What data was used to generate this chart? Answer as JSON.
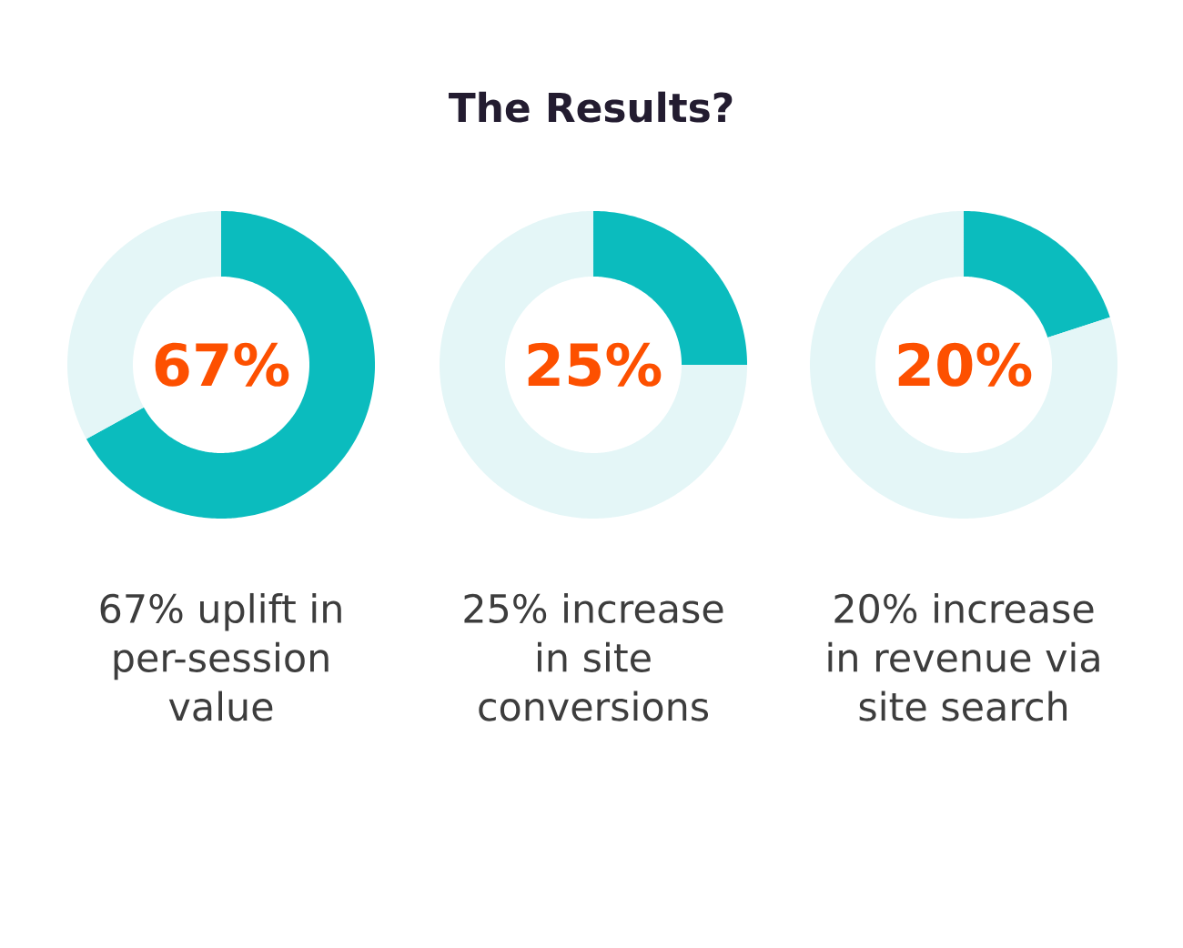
{
  "chart_data": [
    {
      "type": "donut",
      "categories": [
        null,
        null
      ],
      "values": [
        67,
        33
      ],
      "colors": [
        "#0bbcbe",
        "#e4f6f7"
      ],
      "annotations": [
        "67%"
      ],
      "xlabel": "67% uplift in per-session value"
    },
    {
      "type": "donut",
      "title": "The Results?",
      "categories": [
        null,
        null
      ],
      "values": [
        25,
        75
      ],
      "colors": [
        "#0bbcbe",
        "#e4f6f7"
      ],
      "annotations": [
        "25%"
      ],
      "xlabel": "25% increase in site conversions"
    },
    {
      "type": "donut",
      "categories": [
        null,
        null
      ],
      "values": [
        20,
        80
      ],
      "colors": [
        "#0bbcbe",
        "#e4f6f7"
      ],
      "annotations": [
        "20%"
      ],
      "xlabel": "20% increase in revenue via site search"
    }
  ]
}
